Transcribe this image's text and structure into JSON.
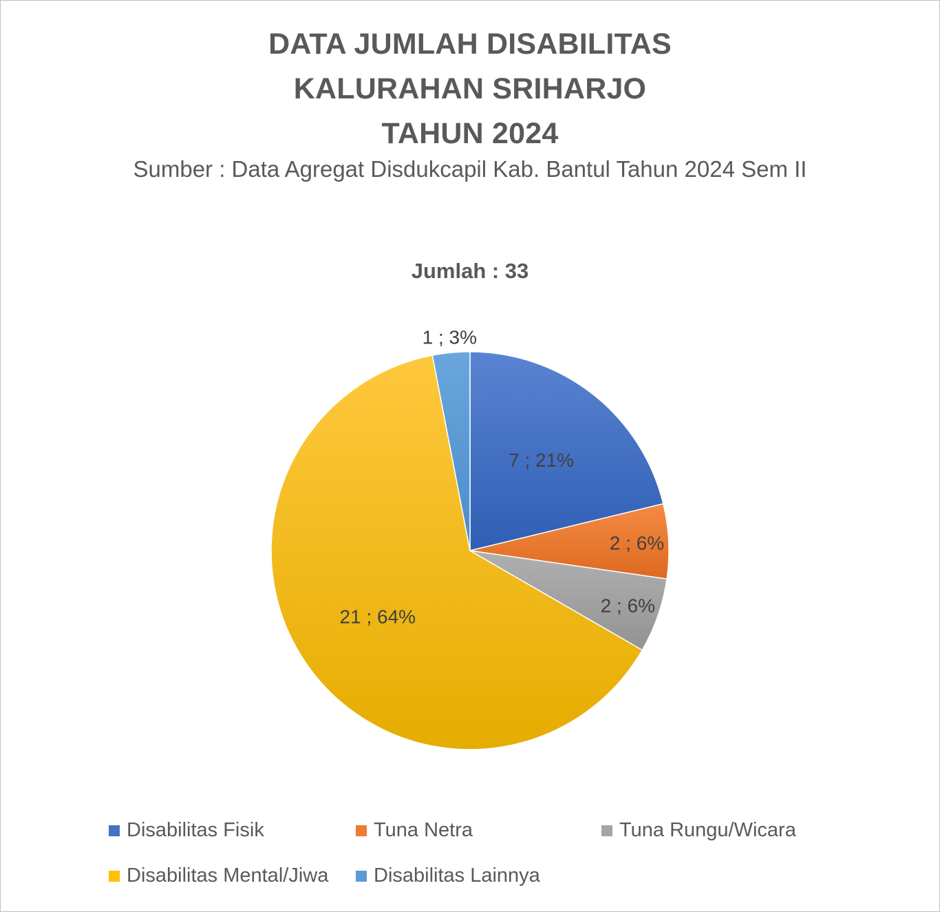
{
  "title_lines": [
    "DATA JUMLAH DISABILITAS",
    "KALURAHAN SRIHARJO",
    "TAHUN 2024"
  ],
  "subtitle": "Sumber : Data Agregat Disdukcapil Kab. Bantul Tahun 2024 Sem II",
  "total_label": "Jumlah : 33",
  "chart_data": {
    "type": "pie",
    "title": "DATA JUMLAH DISABILITAS KALURAHAN SRIHARJO TAHUN 2024",
    "subtitle": "Sumber : Data Agregat Disdukcapil Kab. Bantul Tahun 2024 Sem II",
    "center_label": "Jumlah : 33",
    "legend_position": "bottom",
    "slices": [
      {
        "name": "Disabilitas Fisik",
        "value": 7,
        "percent": 21,
        "label": "7 ; 21%",
        "color": "#4472C4"
      },
      {
        "name": "Tuna Netra",
        "value": 2,
        "percent": 6,
        "label": "2 ; 6%",
        "color": "#ED7D31"
      },
      {
        "name": "Tuna Rungu/Wicara",
        "value": 2,
        "percent": 6,
        "label": "2 ; 6%",
        "color": "#A5A5A5"
      },
      {
        "name": "Disabilitas Mental/Jiwa",
        "value": 21,
        "percent": 64,
        "label": "21 ; 64%",
        "color": "#FFC000"
      },
      {
        "name": "Disabilitas Lainnya",
        "value": 1,
        "percent": 3,
        "label": "1 ; 3%",
        "color": "#5B9BD5"
      }
    ]
  }
}
